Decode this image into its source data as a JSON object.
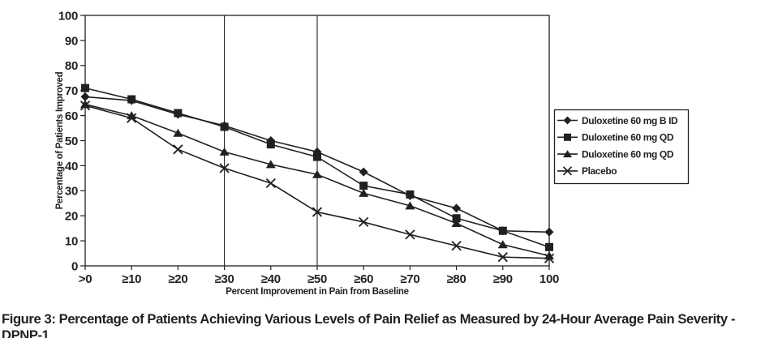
{
  "chart_data": {
    "type": "line",
    "title": "",
    "categories": [
      ">0",
      "≥10",
      "≥20",
      "≥30",
      "≥40",
      "≥50",
      "≥60",
      "≥70",
      "≥80",
      "≥90",
      "100"
    ],
    "series": [
      {
        "name": "Duloxetine 60 mg B ID",
        "marker": "diamond",
        "values": [
          67.5,
          66,
          60.5,
          56,
          50,
          45.5,
          37.5,
          28,
          23,
          14,
          13.5
        ]
      },
      {
        "name": "Duloxetine 60 mg QD",
        "marker": "square",
        "values": [
          71,
          66.5,
          61,
          55.5,
          48.5,
          43.5,
          32,
          28.5,
          19,
          14,
          7.5
        ]
      },
      {
        "name": "Duloxetine 60 mg QD",
        "marker": "triangle",
        "values": [
          64.5,
          60,
          53,
          45.5,
          40.5,
          36.5,
          29,
          24,
          17,
          8.5,
          4
        ]
      },
      {
        "name": "Placebo",
        "marker": "x",
        "values": [
          64,
          59,
          46.5,
          39,
          33,
          21.5,
          17.5,
          12.5,
          8,
          3.5,
          3
        ]
      }
    ],
    "xlabel": "Percent Improvement in Pain from Baseline",
    "ylabel": "Percentage of Patients Improved",
    "ylim": [
      0,
      100
    ],
    "ytick_step": 10,
    "gridlines_at_categories": [
      "≥30",
      "≥50"
    ],
    "legend_position": "right-outside",
    "legend_items": [
      "Duloxetine 60 mg B ID",
      "Duloxetine 60 mg QD",
      "Duloxetine 60 mg QD",
      "Placebo"
    ]
  },
  "caption": "Figure 3: Percentage of Patients Achieving Various Levels of Pain Relief as Measured by 24-Hour Average Pain Severity - DPNP-1",
  "colors": {
    "line": "#231f20",
    "text": "#231f20",
    "background": "#ffffff"
  }
}
